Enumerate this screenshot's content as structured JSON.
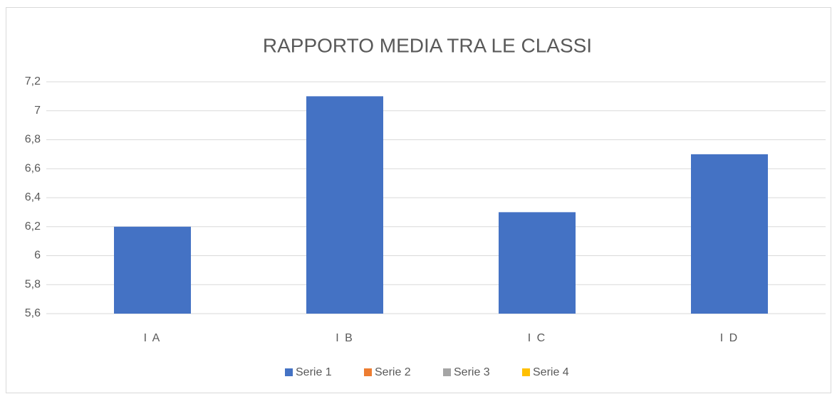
{
  "chart_data": {
    "type": "bar",
    "title": "RAPPORTO MEDIA TRA LE CLASSI",
    "categories": [
      "I A",
      "I B",
      "I C",
      "I D"
    ],
    "series": [
      {
        "name": "Serie 1",
        "color": "#4472c4",
        "values": [
          6.2,
          7.1,
          6.3,
          6.7
        ]
      },
      {
        "name": "Serie 2",
        "color": "#ed7d31",
        "values": [
          null,
          null,
          null,
          null
        ]
      },
      {
        "name": "Serie 3",
        "color": "#a5a5a5",
        "values": [
          null,
          null,
          null,
          null
        ]
      },
      {
        "name": "Serie 4",
        "color": "#ffc000",
        "values": [
          null,
          null,
          null,
          null
        ]
      }
    ],
    "ylim": [
      5.6,
      7.2
    ],
    "yticks": [
      {
        "value": 5.6,
        "label": "5,6"
      },
      {
        "value": 5.8,
        "label": "5,8"
      },
      6,
      {
        "value": 6.2,
        "label": "6,2"
      },
      {
        "value": 6.4,
        "label": "6,4"
      },
      {
        "value": 6.6,
        "label": "6,6"
      },
      {
        "value": 6.8,
        "label": "6,8"
      },
      7,
      {
        "value": 7.2,
        "label": "7,2"
      }
    ],
    "grid": true,
    "legend": "bottom"
  }
}
